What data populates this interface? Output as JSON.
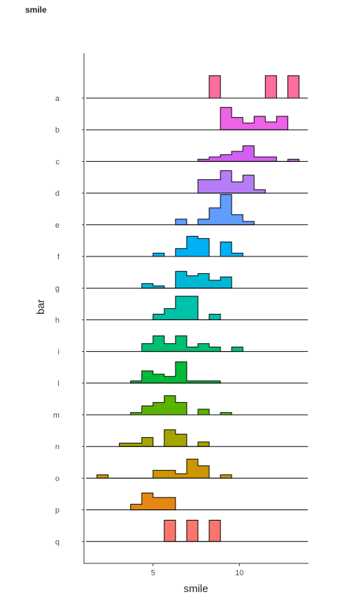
{
  "chart_data": {
    "type": "ridgeline-histogram",
    "title": "smile",
    "xlabel": "smile",
    "ylabel": "bar",
    "xlim": [
      1,
      14
    ],
    "x_ticks": [
      5,
      10
    ],
    "bin_width": 0.65,
    "series": [
      {
        "name": "a",
        "color": "#FF6C9F",
        "start": 1.1,
        "heights": [
          0,
          0,
          0,
          0,
          0,
          0,
          0,
          0,
          0,
          0,
          0,
          1,
          0,
          0,
          0,
          0,
          1,
          0,
          1,
          0
        ]
      },
      {
        "name": "b",
        "color": "#EE62E6",
        "start": 1.1,
        "heights": [
          0,
          0,
          0,
          0,
          0,
          0,
          0,
          0,
          0,
          0,
          0,
          0,
          1,
          0.55,
          0.3,
          0.6,
          0.35,
          0.6,
          0,
          0
        ]
      },
      {
        "name": "c",
        "color": "#D35FF4",
        "start": 1.1,
        "heights": [
          0,
          0,
          0,
          0,
          0,
          0,
          0,
          0,
          0,
          0,
          0.1,
          0.2,
          0.3,
          0.45,
          0.7,
          0.2,
          0.2,
          0,
          0.1,
          0
        ]
      },
      {
        "name": "d",
        "color": "#B57EF8",
        "start": 1.1,
        "heights": [
          0,
          0,
          0,
          0,
          0,
          0,
          0,
          0,
          0,
          0,
          0.6,
          0.6,
          1,
          0.5,
          0.8,
          0.15,
          0,
          0,
          0,
          0
        ]
      },
      {
        "name": "e",
        "color": "#619CFF",
        "start": 1.1,
        "heights": [
          0,
          0,
          0,
          0,
          0,
          0,
          0,
          0,
          0.25,
          0,
          0.25,
          0.75,
          1.35,
          0.45,
          0.15,
          0,
          0,
          0,
          0,
          0
        ]
      },
      {
        "name": "f",
        "color": "#00B0F6",
        "start": 1.1,
        "heights": [
          0,
          0,
          0,
          0,
          0,
          0,
          0.15,
          0,
          0.35,
          0.9,
          0.8,
          0,
          0.65,
          0.15,
          0,
          0,
          0,
          0,
          0,
          0
        ]
      },
      {
        "name": "g",
        "color": "#00B8D6",
        "start": 1.1,
        "heights": [
          0,
          0,
          0,
          0,
          0,
          0.2,
          0.1,
          0,
          0.75,
          0.55,
          0.65,
          0.35,
          0.5,
          0,
          0,
          0,
          0,
          0,
          0,
          0
        ]
      },
      {
        "name": "h",
        "color": "#00C1AA",
        "start": 1.1,
        "heights": [
          0,
          0,
          0,
          0,
          0,
          0,
          0.25,
          0.5,
          1.05,
          1.05,
          0,
          0.25,
          0,
          0,
          0,
          0,
          0,
          0,
          0,
          0
        ]
      },
      {
        "name": "i",
        "color": "#00BE72",
        "start": 1.1,
        "heights": [
          0,
          0,
          0,
          0,
          0,
          0.35,
          0.7,
          0.35,
          0.7,
          0.2,
          0.35,
          0.2,
          0,
          0.2,
          0,
          0,
          0,
          0,
          0,
          0
        ]
      },
      {
        "name": "l",
        "color": "#00BA38",
        "start": 1.1,
        "heights": [
          0,
          0,
          0,
          0,
          0.1,
          0.55,
          0.4,
          0.3,
          0.95,
          0.1,
          0.1,
          0.1,
          0,
          0,
          0,
          0,
          0,
          0,
          0,
          0
        ]
      },
      {
        "name": "m",
        "color": "#5BB300",
        "start": 1.1,
        "heights": [
          0,
          0,
          0,
          0,
          0.1,
          0.4,
          0.55,
          0.85,
          0.55,
          0,
          0.25,
          0,
          0.1,
          0,
          0,
          0,
          0,
          0,
          0,
          0
        ]
      },
      {
        "name": "n",
        "color": "#A3A500",
        "start": 1.1,
        "heights": [
          0,
          0,
          0,
          0.15,
          0.15,
          0.4,
          0,
          0.75,
          0.55,
          0,
          0.2,
          0,
          0,
          0,
          0,
          0,
          0,
          0,
          0,
          0
        ]
      },
      {
        "name": "o",
        "color": "#CD9600",
        "start": 1.1,
        "heights": [
          0,
          0.15,
          0,
          0,
          0,
          0,
          0.35,
          0.35,
          0.2,
          0.85,
          0.55,
          0,
          0.15,
          0,
          0,
          0,
          0,
          0,
          0,
          0
        ]
      },
      {
        "name": "p",
        "color": "#E68613",
        "start": 1.1,
        "heights": [
          0,
          0,
          0,
          0,
          0.25,
          0.75,
          0.55,
          0.55,
          0,
          0,
          0,
          0,
          0,
          0,
          0,
          0,
          0,
          0,
          0,
          0
        ]
      },
      {
        "name": "q",
        "color": "#F8766D",
        "start": 1.1,
        "heights": [
          0,
          0,
          0,
          0,
          0,
          0,
          0,
          0.95,
          0,
          0.95,
          0,
          0.95,
          0,
          0,
          0,
          0,
          0,
          0,
          0,
          0
        ]
      }
    ]
  }
}
